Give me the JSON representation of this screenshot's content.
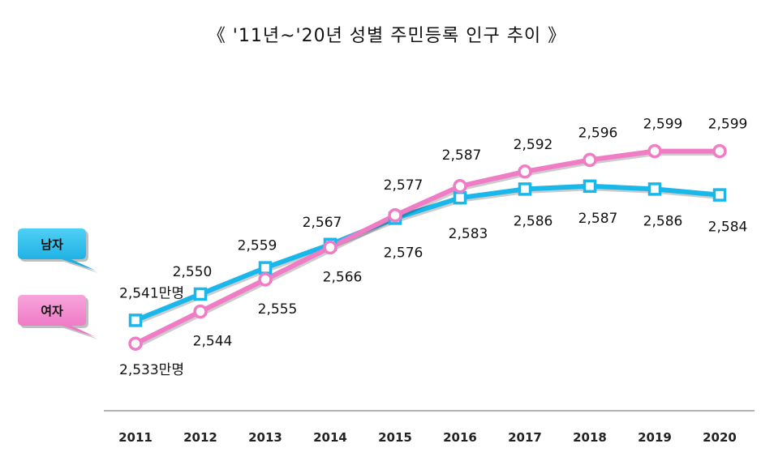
{
  "chart_data": {
    "type": "line",
    "title": "《 '11년~'20년 성별 주민등록 인구 추이 》",
    "categories": [
      "2011",
      "2012",
      "2013",
      "2014",
      "2015",
      "2016",
      "2017",
      "2018",
      "2019",
      "2020"
    ],
    "series": [
      {
        "name": "남자",
        "color": "#1ab7ea",
        "values": [
          2541,
          2550,
          2559,
          2567,
          2576,
          2583,
          2586,
          2587,
          2586,
          2584
        ],
        "labels": [
          "2,541만명",
          "2,550",
          "2,559",
          "2,567",
          "2,576",
          "2,583",
          "2,586",
          "2,587",
          "2,586",
          "2,584"
        ]
      },
      {
        "name": "여자",
        "color": "#f07cc6",
        "values": [
          2533,
          2544,
          2555,
          2566,
          2577,
          2587,
          2592,
          2596,
          2599,
          2599
        ],
        "labels": [
          "2,533만명",
          "2,544",
          "2,555",
          "2,566",
          "2,577",
          "2,587",
          "2,592",
          "2,596",
          "2,599",
          "2,599"
        ]
      }
    ],
    "ylim": [
      2500,
      2620
    ],
    "xlabel": "",
    "ylabel": "",
    "grid": false,
    "legend_position": "left"
  }
}
